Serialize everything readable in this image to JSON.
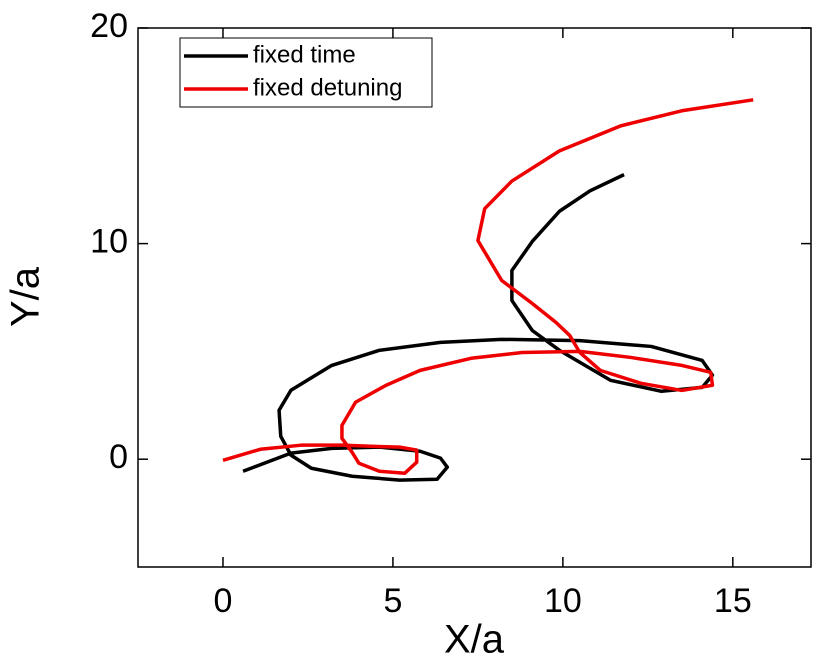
{
  "chart_data": {
    "type": "line",
    "xlabel": "X/a",
    "ylabel": "Y/a",
    "xlim": [
      -2.5,
      17.3
    ],
    "ylim": [
      -5,
      20
    ],
    "xticks": [
      0,
      5,
      10,
      15
    ],
    "yticks": [
      0,
      10,
      20
    ],
    "legend": "upper left",
    "series": [
      {
        "name": "fixed time",
        "color": "#000000",
        "x": [
          0.59,
          2.0,
          3.2,
          4.6,
          5.8,
          6.4,
          6.6,
          6.3,
          5.2,
          3.8,
          2.6,
          2.0,
          1.7,
          1.65,
          2.0,
          3.2,
          4.6,
          6.4,
          8.2,
          10.5,
          12.6,
          14.1,
          14.4,
          14.1,
          12.9,
          11.4,
          9.9,
          9.1,
          8.5,
          8.5,
          9.1,
          9.9,
          10.8,
          11.8
        ],
        "values": [
          -0.56,
          0.28,
          0.5,
          0.56,
          0.37,
          0.05,
          -0.37,
          -0.93,
          -0.97,
          -0.79,
          -0.42,
          0.19,
          1.06,
          2.27,
          3.2,
          4.35,
          5.05,
          5.42,
          5.56,
          5.5,
          5.23,
          4.58,
          3.9,
          3.33,
          3.15,
          3.66,
          5.05,
          5.97,
          7.36,
          8.75,
          10.1,
          11.5,
          12.45,
          13.2
        ]
      },
      {
        "name": "fixed detuning",
        "color": "#ee0000",
        "x": [
          0,
          1.1,
          2.3,
          3.5,
          4.35,
          5.2,
          5.7,
          5.7,
          5.35,
          4.6,
          4.0,
          3.8,
          3.5,
          3.5,
          3.9,
          4.8,
          5.8,
          7.3,
          8.8,
          10.5,
          12.0,
          13.5,
          14.35,
          14.4,
          13.5,
          12.3,
          11.1,
          10.5,
          10.2,
          9.8,
          9.1,
          8.2,
          7.5,
          7.7,
          8.5,
          9.9,
          11.7,
          13.5,
          15.6
        ],
        "values": [
          -0.05,
          0.46,
          0.65,
          0.65,
          0.6,
          0.56,
          0.42,
          -0.14,
          -0.65,
          -0.56,
          -0.19,
          0.32,
          0.97,
          1.57,
          2.64,
          3.43,
          4.12,
          4.68,
          4.95,
          5.0,
          4.72,
          4.35,
          4.03,
          3.43,
          3.19,
          3.52,
          4.12,
          4.95,
          5.74,
          6.34,
          7.22,
          8.29,
          10.14,
          11.62,
          12.9,
          14.3,
          15.46,
          16.16,
          16.67
        ]
      }
    ]
  }
}
